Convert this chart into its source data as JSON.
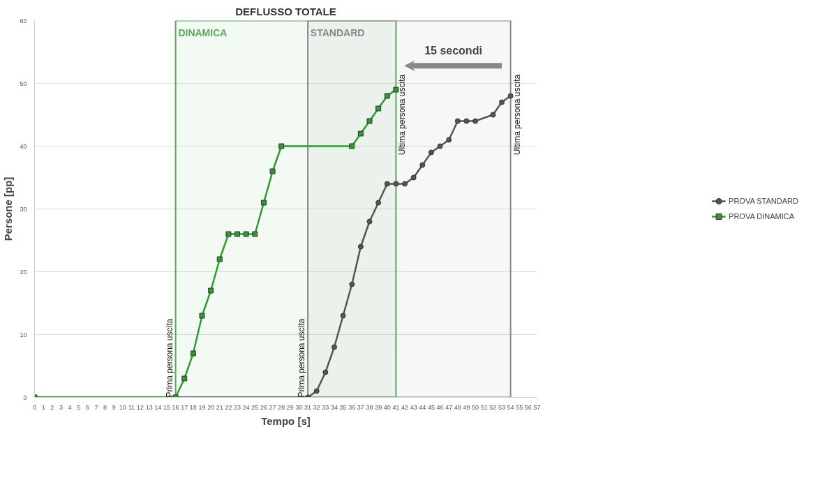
{
  "chart_data": {
    "type": "line",
    "title": "DEFLUSSO TOTALE",
    "xlabel": "Tempo [s]",
    "ylabel": "Persone [pp]",
    "xlim": [
      0,
      57
    ],
    "xticks": [
      0,
      1,
      2,
      3,
      4,
      5,
      6,
      7,
      8,
      9,
      10,
      11,
      12,
      13,
      14,
      15,
      16,
      17,
      18,
      19,
      20,
      21,
      22,
      23,
      24,
      25,
      26,
      27,
      28,
      29,
      30,
      31,
      32,
      33,
      34,
      35,
      36,
      37,
      38,
      39,
      40,
      41,
      42,
      43,
      44,
      45,
      46,
      47,
      48,
      49,
      50,
      51,
      52,
      53,
      54,
      55,
      56,
      57
    ],
    "ylim": [
      0,
      60
    ],
    "yticks": [
      0,
      10,
      20,
      30,
      40,
      50,
      60
    ],
    "grid": "y",
    "legend": "right",
    "line_style": "solid",
    "series": [
      {
        "name": "PROVA STANDARD",
        "color": "#555555",
        "marker": "circle",
        "x": [
          0,
          31,
          32,
          33,
          34,
          35,
          36,
          37,
          38,
          39,
          40,
          41,
          42,
          43,
          44,
          45,
          46,
          47,
          48,
          49,
          50,
          52,
          53,
          54
        ],
        "values": [
          0,
          0,
          1,
          4,
          8,
          13,
          18,
          24,
          28,
          31,
          34,
          34,
          34,
          35,
          37,
          39,
          40,
          41,
          44,
          44,
          44,
          45,
          47,
          48
        ]
      },
      {
        "name": "PROVA DINAMICA",
        "color": "#2f9a2f",
        "marker": "square",
        "x": [
          0,
          16,
          17,
          18,
          19,
          20,
          21,
          22,
          23,
          24,
          25,
          26,
          27,
          28,
          36,
          37,
          38,
          39,
          40,
          41
        ],
        "values": [
          0,
          0,
          3,
          7,
          13,
          17,
          22,
          26,
          26,
          26,
          26,
          31,
          36,
          40,
          40,
          42,
          44,
          46,
          48,
          49
        ]
      }
    ],
    "bands": [
      {
        "axis": "x",
        "from": 16,
        "to": 41,
        "label": "DINAMICA",
        "color": "#5aaa5a"
      },
      {
        "axis": "x",
        "from": 31,
        "to": 54,
        "label": "STANDARD",
        "color": "#888888"
      }
    ],
    "annotations": [
      {
        "text": "Prima persona uscita",
        "x": 16,
        "y": 0
      },
      {
        "text": "Prima persona uscita",
        "x": 31,
        "y": 0
      },
      {
        "text": "Ultima persona uscita",
        "x": 41,
        "y": 49
      },
      {
        "text": "Ultima persona uscita",
        "x": 54,
        "y": 48
      },
      "15 secondi"
    ]
  }
}
